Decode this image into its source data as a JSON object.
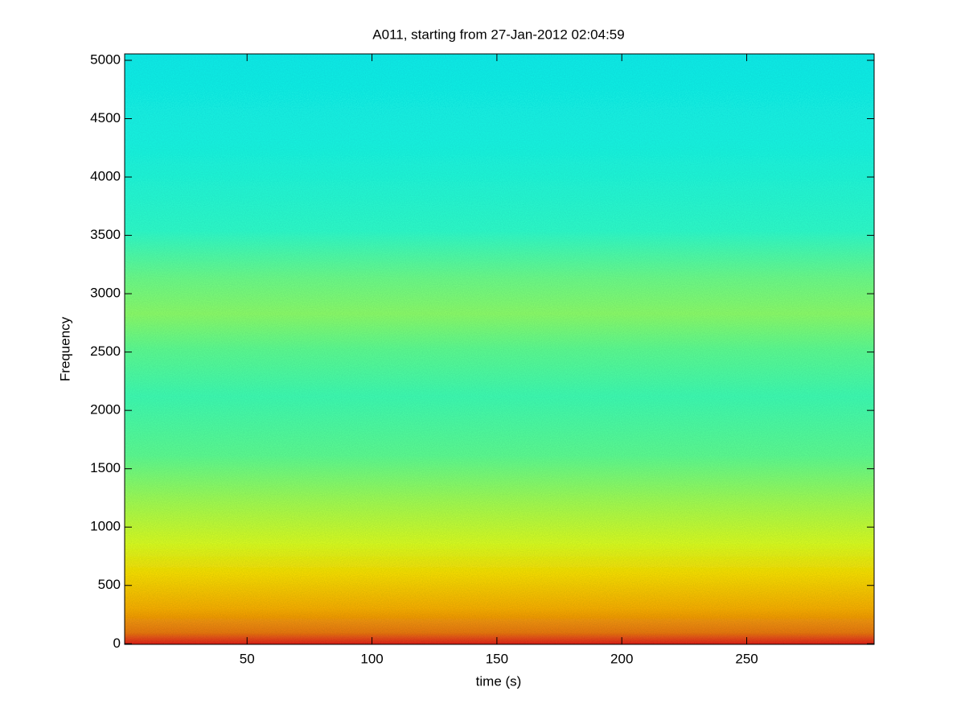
{
  "chart_data": {
    "type": "spectrogram",
    "title": "A011, starting from 27-Jan-2012 02:04:59",
    "x_label": "time (s)",
    "y_label": "Frequency",
    "xlim": [
      1,
      301
    ],
    "xticks": [
      50,
      100,
      150,
      200,
      250
    ],
    "ylim": [
      -5,
      5055
    ],
    "yticks": [
      0,
      500,
      1000,
      1500,
      2000,
      2500,
      3000,
      3500,
      4000,
      4500,
      5000
    ]
  }
}
